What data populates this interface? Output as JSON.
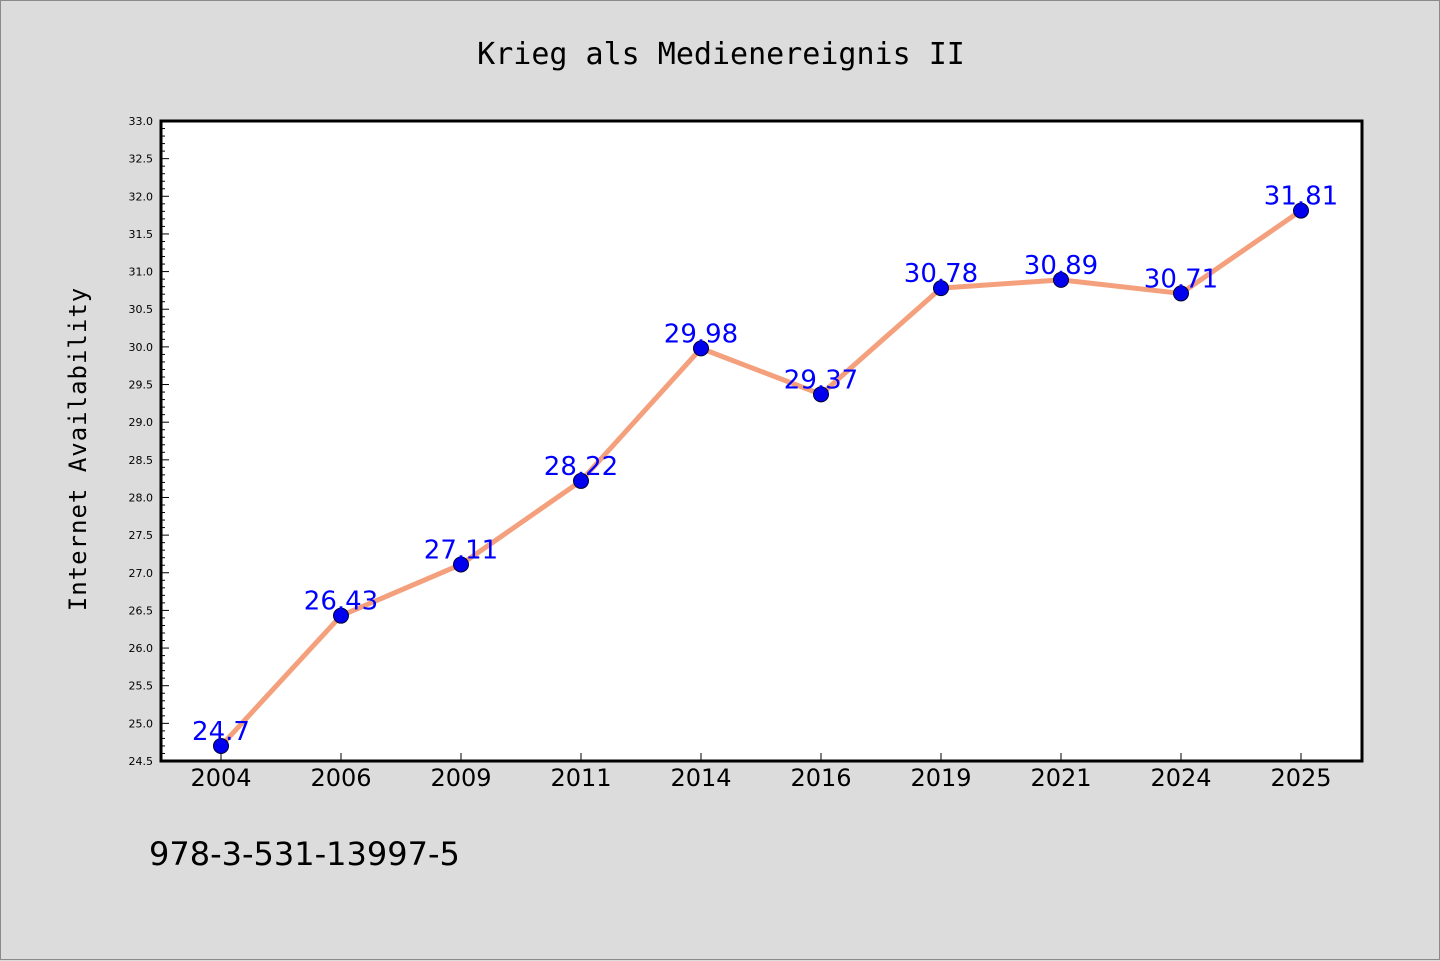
{
  "chart_data": {
    "type": "line",
    "title": "Krieg als Medienereignis II",
    "ylabel": "Internet Availability",
    "xlabel": "",
    "categories": [
      "2004",
      "2006",
      "2009",
      "2011",
      "2014",
      "2016",
      "2019",
      "2021",
      "2024",
      "2025"
    ],
    "series": [
      {
        "values": [
          24.7,
          26.43,
          27.11,
          28.22,
          29.98,
          29.37,
          30.78,
          30.89,
          30.71,
          31.81
        ]
      }
    ],
    "data_labels": [
      "24.7",
      "26.43",
      "27.11",
      "28.22",
      "29.98",
      "29.37",
      "30.78",
      "30.89",
      "30.71",
      "31.81"
    ],
    "ylim": [
      24.5,
      33.0
    ],
    "yticks": [
      "24.5",
      "25.0",
      "25.5",
      "26.0",
      "26.5",
      "27.0",
      "27.5",
      "28.0",
      "28.5",
      "29.0",
      "29.5",
      "30.0",
      "30.5",
      "31.0",
      "31.5",
      "32.0",
      "32.5",
      "33.0"
    ],
    "grid": false,
    "legend": "none",
    "colors": {
      "line": "#f4a07c",
      "marker": "#0000ee",
      "label": "#0000ff",
      "background": "#dcdcdc",
      "plot_background": "#ffffff"
    }
  },
  "footer": {
    "isbn": "978-3-531-13997-5"
  }
}
